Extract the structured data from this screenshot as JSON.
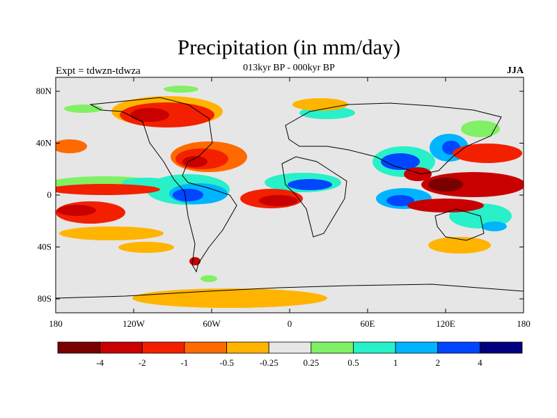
{
  "title": "Precipitation (in mm/day)",
  "subtitle": "013kyr BP - 000kyr BP",
  "left_label": "Expt = tdwzn-tdwza",
  "right_label": "JJA",
  "map": {
    "lat_ticks": [
      "80N",
      "40N",
      "0",
      "40S",
      "80S"
    ],
    "lon_ticks": [
      "180",
      "120W",
      "60W",
      "0",
      "60E",
      "120E",
      "180"
    ]
  },
  "colorbar": {
    "colors": [
      "#7a0000",
      "#c80000",
      "#f32000",
      "#ff6a00",
      "#ffb400",
      "#e6e6e6",
      "#80f064",
      "#28f0c8",
      "#00b4ff",
      "#0046ff",
      "#000080"
    ],
    "tick_labels": [
      "-4",
      "-2",
      "-1",
      "-0.5",
      "-0.25",
      "0.25",
      "0.5",
      "1",
      "2",
      "4"
    ]
  },
  "colors": {
    "ocean_background": "#e6e6e6",
    "coastline": "#000000"
  }
}
